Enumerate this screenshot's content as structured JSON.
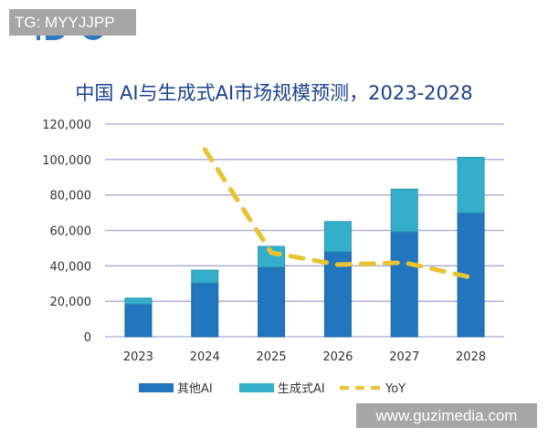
{
  "watermark_top": "TG: MYYJJPP",
  "watermark_bottom": "www.guzimedia.com",
  "colors": {
    "other_ai": "#2176bd",
    "gen_ai": "#35afc9",
    "yoy": "#e8c332",
    "grid": "#a7a9d2",
    "title": "#1d3f8f",
    "logo": "#2d7ac0"
  },
  "chart_data": {
    "type": "bar",
    "stacked": true,
    "title": "中国 AI与生成式AI市场规模预测，2023-2028",
    "categories": [
      "2023",
      "2024",
      "2025",
      "2026",
      "2027",
      "2028"
    ],
    "series": [
      {
        "name": "其他AI",
        "values": [
          18500,
          30400,
          39300,
          48000,
          59300,
          70000
        ]
      },
      {
        "name": "生成式AI",
        "values": [
          3300,
          7200,
          11700,
          17000,
          24000,
          31200
        ]
      }
    ],
    "line_series": {
      "name": "YoY",
      "style": "dashed",
      "values_on_primary_axis": [
        null,
        105700,
        47400,
        40700,
        41800,
        33500
      ]
    },
    "yticks": [
      "0",
      "20,000",
      "40,000",
      "60,000",
      "80,000",
      "100,000",
      "120,000"
    ],
    "ylim": [
      0,
      120000
    ],
    "grid": true,
    "legend": "bottom"
  }
}
